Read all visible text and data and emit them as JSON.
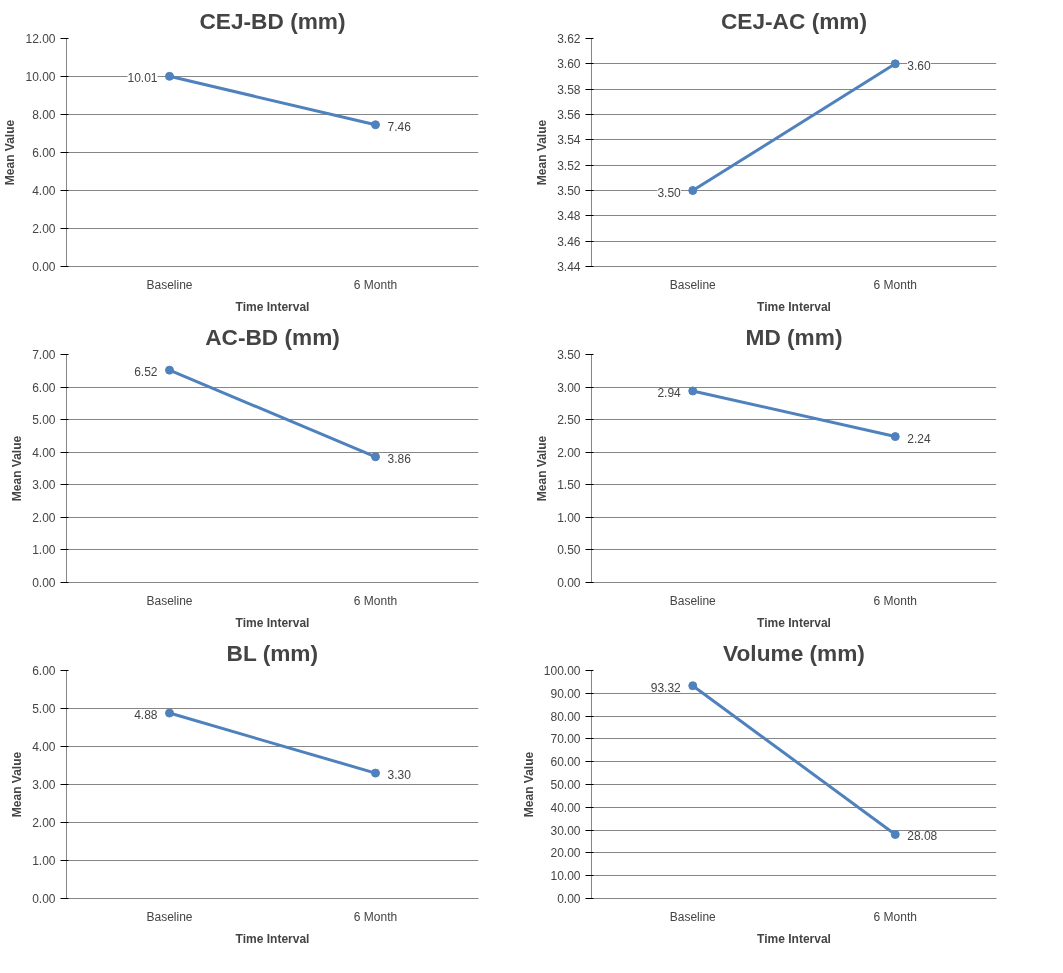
{
  "chart_data": [
    {
      "type": "line",
      "title": "CEJ-BD (mm)",
      "xlabel": "Time Interval",
      "ylabel": "Mean Value",
      "categories": [
        "Baseline",
        "6 Month"
      ],
      "series": [
        {
          "color": "#4f81bd",
          "values": [
            10.01,
            7.46
          ],
          "value_labels": [
            "10.01",
            "7.46"
          ]
        }
      ],
      "ylim": [
        0,
        12
      ],
      "yticks": [
        {
          "value": 0,
          "label": "0.00"
        },
        {
          "value": 2,
          "label": "2.00"
        },
        {
          "value": 4,
          "label": "4.00"
        },
        {
          "value": 6,
          "label": "6.00"
        },
        {
          "value": 8,
          "label": "8.00"
        },
        {
          "value": 10,
          "label": "10.00"
        },
        {
          "value": 12,
          "label": "12.00"
        }
      ],
      "grid": "y",
      "marker": "circle",
      "line_style": "solid"
    },
    {
      "type": "line",
      "title": "CEJ-AC (mm)",
      "xlabel": "Time Interval",
      "ylabel": "Mean Value",
      "categories": [
        "Baseline",
        "6 Month"
      ],
      "series": [
        {
          "color": "#4f81bd",
          "values": [
            3.5,
            3.6
          ],
          "value_labels": [
            "3.50",
            "3.60"
          ]
        }
      ],
      "ylim": [
        3.44,
        3.62
      ],
      "yticks": [
        {
          "value": 3.44,
          "label": "3.44"
        },
        {
          "value": 3.46,
          "label": "3.46"
        },
        {
          "value": 3.48,
          "label": "3.48"
        },
        {
          "value": 3.5,
          "label": "3.50"
        },
        {
          "value": 3.52,
          "label": "3.52"
        },
        {
          "value": 3.54,
          "label": "3.54"
        },
        {
          "value": 3.56,
          "label": "3.56"
        },
        {
          "value": 3.58,
          "label": "3.58"
        },
        {
          "value": 3.6,
          "label": "3.60"
        },
        {
          "value": 3.62,
          "label": "3.62"
        }
      ],
      "grid": "y",
      "marker": "circle",
      "line_style": "solid"
    },
    {
      "type": "line",
      "title": "AC-BD (mm)",
      "xlabel": "Time Interval",
      "ylabel": "Mean Value",
      "categories": [
        "Baseline",
        "6 Month"
      ],
      "series": [
        {
          "color": "#4f81bd",
          "values": [
            6.52,
            3.86
          ],
          "value_labels": [
            "6.52",
            "3.86"
          ]
        }
      ],
      "ylim": [
        0,
        7
      ],
      "yticks": [
        {
          "value": 0,
          "label": "0.00"
        },
        {
          "value": 1,
          "label": "1.00"
        },
        {
          "value": 2,
          "label": "2.00"
        },
        {
          "value": 3,
          "label": "3.00"
        },
        {
          "value": 4,
          "label": "4.00"
        },
        {
          "value": 5,
          "label": "5.00"
        },
        {
          "value": 6,
          "label": "6.00"
        },
        {
          "value": 7,
          "label": "7.00"
        }
      ],
      "grid": "y",
      "marker": "circle",
      "line_style": "solid"
    },
    {
      "type": "line",
      "title": "MD (mm)",
      "xlabel": "Time Interval",
      "ylabel": "Mean Value",
      "categories": [
        "Baseline",
        "6 Month"
      ],
      "series": [
        {
          "color": "#4f81bd",
          "values": [
            2.94,
            2.24
          ],
          "value_labels": [
            "2.94",
            "2.24"
          ]
        }
      ],
      "ylim": [
        0,
        3.5
      ],
      "yticks": [
        {
          "value": 0,
          "label": "0.00"
        },
        {
          "value": 0.5,
          "label": "0.50"
        },
        {
          "value": 1,
          "label": "1.00"
        },
        {
          "value": 1.5,
          "label": "1.50"
        },
        {
          "value": 2,
          "label": "2.00"
        },
        {
          "value": 2.5,
          "label": "2.50"
        },
        {
          "value": 3,
          "label": "3.00"
        },
        {
          "value": 3.5,
          "label": "3.50"
        }
      ],
      "grid": "y",
      "marker": "circle",
      "line_style": "solid"
    },
    {
      "type": "line",
      "title": "BL (mm)",
      "xlabel": "Time Interval",
      "ylabel": "Mean Value",
      "categories": [
        "Baseline",
        "6 Month"
      ],
      "series": [
        {
          "color": "#4f81bd",
          "values": [
            4.88,
            3.3
          ],
          "value_labels": [
            "4.88",
            "3.30"
          ]
        }
      ],
      "ylim": [
        0,
        6
      ],
      "yticks": [
        {
          "value": 0,
          "label": "0.00"
        },
        {
          "value": 1,
          "label": "1.00"
        },
        {
          "value": 2,
          "label": "2.00"
        },
        {
          "value": 3,
          "label": "3.00"
        },
        {
          "value": 4,
          "label": "4.00"
        },
        {
          "value": 5,
          "label": "5.00"
        },
        {
          "value": 6,
          "label": "6.00"
        }
      ],
      "grid": "y",
      "marker": "circle",
      "line_style": "solid"
    },
    {
      "type": "line",
      "title": "Volume (mm)",
      "xlabel": "Time Interval",
      "ylabel": "Mean Value",
      "categories": [
        "Baseline",
        "6 Month"
      ],
      "series": [
        {
          "color": "#4f81bd",
          "values": [
            93.32,
            28.08
          ],
          "value_labels": [
            "93.32",
            "28.08"
          ]
        }
      ],
      "ylim": [
        0,
        100
      ],
      "yticks": [
        {
          "value": 0,
          "label": "0.00"
        },
        {
          "value": 10,
          "label": "10.00"
        },
        {
          "value": 20,
          "label": "20.00"
        },
        {
          "value": 30,
          "label": "30.00"
        },
        {
          "value": 40,
          "label": "40.00"
        },
        {
          "value": 50,
          "label": "50.00"
        },
        {
          "value": 60,
          "label": "60.00"
        },
        {
          "value": 70,
          "label": "70.00"
        },
        {
          "value": 80,
          "label": "80.00"
        },
        {
          "value": 90,
          "label": "90.00"
        },
        {
          "value": 100,
          "label": "100.00"
        }
      ],
      "grid": "y",
      "marker": "circle",
      "line_style": "solid"
    }
  ]
}
